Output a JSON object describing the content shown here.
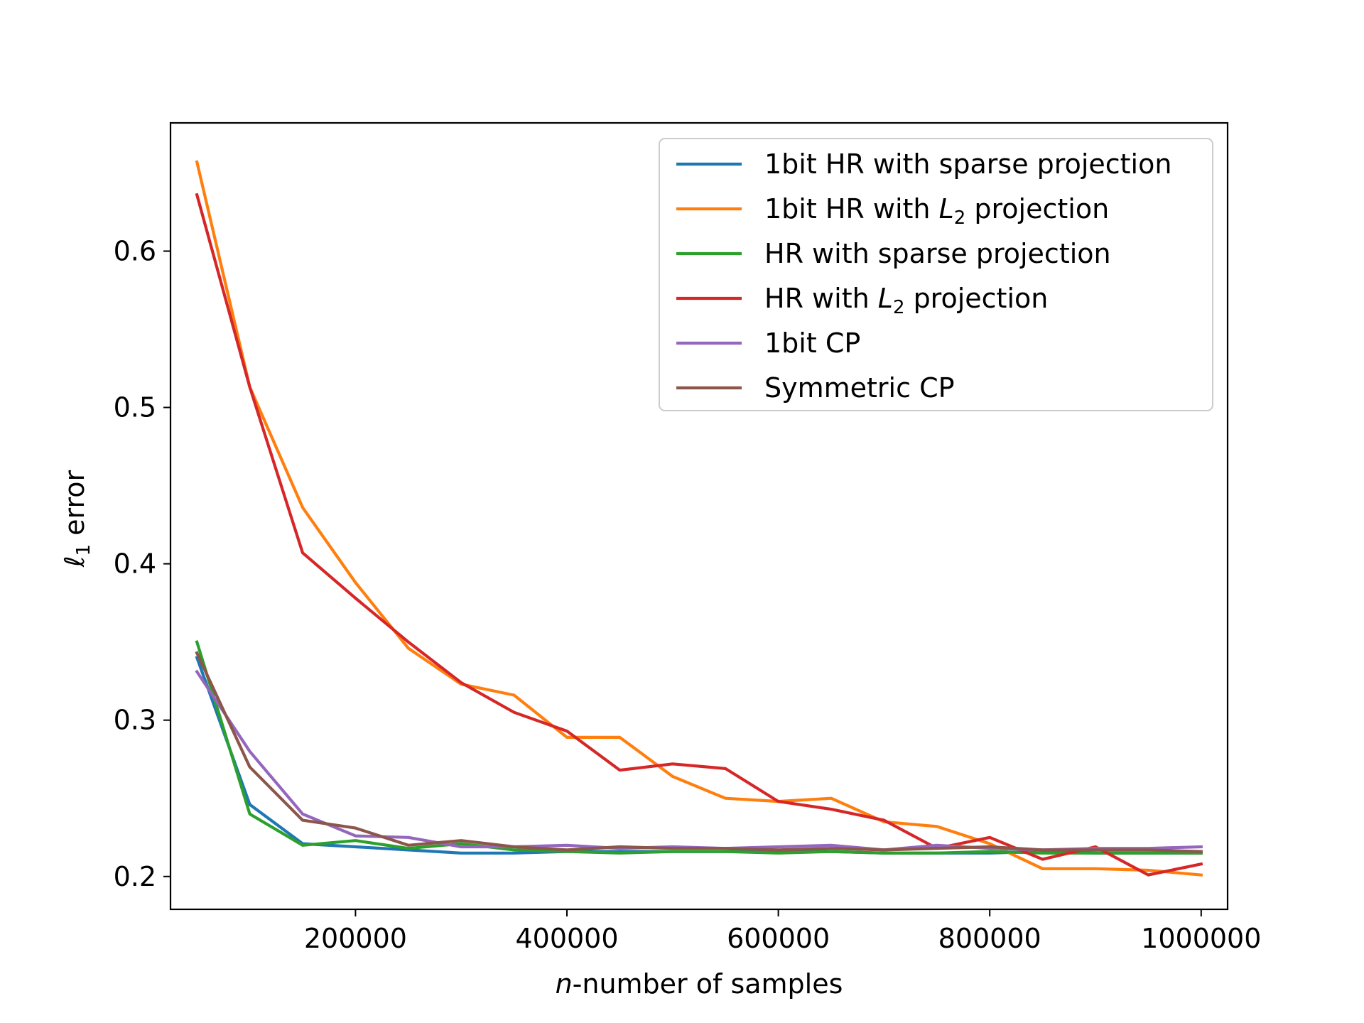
{
  "chart_data": {
    "type": "line",
    "title": "",
    "xlabel": {
      "italic": "n",
      "rest": "-number of samples"
    },
    "ylabel": {
      "symbol": "ℓ",
      "sub": "1",
      "rest": " error"
    },
    "xlim": [
      25000,
      1025000
    ],
    "ylim": [
      0.179,
      0.682
    ],
    "x_ticks": [
      200000,
      400000,
      600000,
      800000,
      1000000
    ],
    "x_tick_labels": [
      "200000",
      "400000",
      "600000",
      "800000",
      "1000000"
    ],
    "y_ticks": [
      0.2,
      0.3,
      0.4,
      0.5,
      0.6
    ],
    "y_tick_labels": [
      "0.2",
      "0.3",
      "0.4",
      "0.5",
      "0.6"
    ],
    "legend_position": "top-right",
    "x": [
      50000,
      100000,
      150000,
      200000,
      250000,
      300000,
      350000,
      400000,
      450000,
      500000,
      550000,
      600000,
      650000,
      700000,
      750000,
      800000,
      850000,
      900000,
      950000,
      1000000
    ],
    "series": [
      {
        "name": "1bit HR with sparse projection",
        "label_main": "1bit HR with sparse projection",
        "color": "#1f77b4",
        "values": [
          0.34,
          0.246,
          0.221,
          0.219,
          0.217,
          0.215,
          0.215,
          0.216,
          0.216,
          0.216,
          0.216,
          0.216,
          0.216,
          0.215,
          0.215,
          0.215,
          0.216,
          0.215,
          0.215,
          0.215
        ]
      },
      {
        "name": "1bit HR with L2 projection",
        "label_main": "1bit HR with ",
        "label_italic": "L",
        "label_sub": "2",
        "label_tail": " projection",
        "color": "#ff7f0e",
        "values": [
          0.657,
          0.513,
          0.436,
          0.388,
          0.346,
          0.323,
          0.316,
          0.289,
          0.289,
          0.264,
          0.25,
          0.248,
          0.25,
          0.235,
          0.232,
          0.221,
          0.205,
          0.205,
          0.204,
          0.201
        ]
      },
      {
        "name": "HR with sparse projection",
        "label_main": "HR with sparse projection",
        "color": "#2ca02c",
        "values": [
          0.35,
          0.24,
          0.22,
          0.223,
          0.218,
          0.221,
          0.217,
          0.216,
          0.215,
          0.216,
          0.216,
          0.215,
          0.216,
          0.215,
          0.215,
          0.216,
          0.215,
          0.215,
          0.215,
          0.215
        ]
      },
      {
        "name": "HR with L2 projection",
        "label_main": "HR with ",
        "label_italic": "L",
        "label_sub": "2",
        "label_tail": " projection",
        "color": "#d62728",
        "values": [
          0.636,
          0.513,
          0.407,
          0.378,
          0.35,
          0.324,
          0.305,
          0.293,
          0.268,
          0.272,
          0.269,
          0.248,
          0.243,
          0.236,
          0.218,
          0.225,
          0.211,
          0.219,
          0.201,
          0.208
        ]
      },
      {
        "name": "1bit CP",
        "label_main": "1bit CP",
        "color": "#9467bd",
        "values": [
          0.331,
          0.28,
          0.24,
          0.226,
          0.225,
          0.219,
          0.219,
          0.22,
          0.218,
          0.219,
          0.218,
          0.219,
          0.22,
          0.217,
          0.22,
          0.218,
          0.217,
          0.218,
          0.218,
          0.219
        ]
      },
      {
        "name": "Symmetric CP",
        "label_main": "Symmetric CP",
        "color": "#8c564b",
        "values": [
          0.343,
          0.27,
          0.236,
          0.231,
          0.22,
          0.223,
          0.219,
          0.217,
          0.219,
          0.218,
          0.218,
          0.217,
          0.218,
          0.217,
          0.218,
          0.219,
          0.217,
          0.217,
          0.217,
          0.216
        ]
      }
    ]
  }
}
